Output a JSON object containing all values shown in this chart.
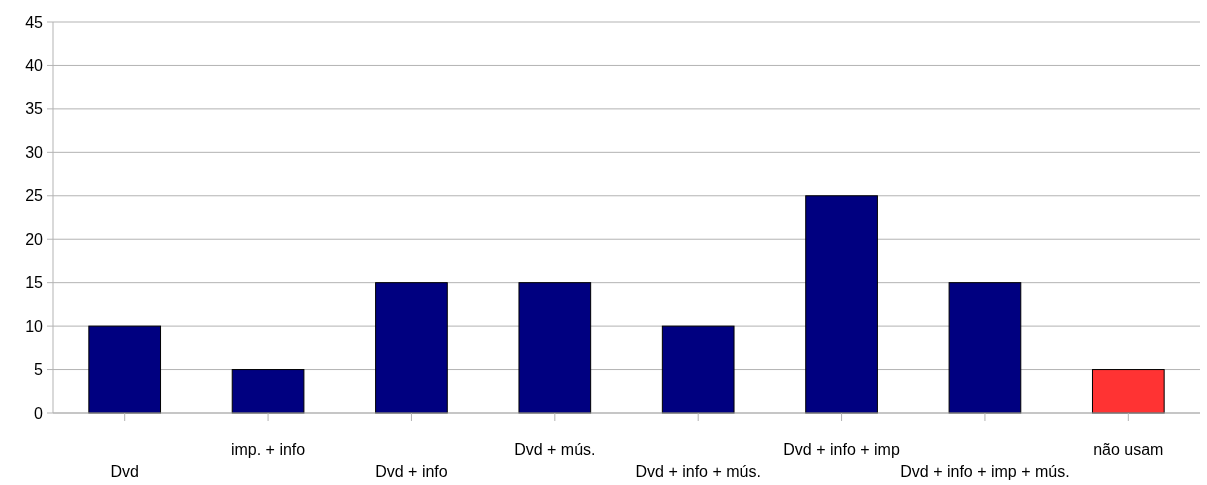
{
  "chart_data": {
    "type": "bar",
    "categories": [
      "Dvd",
      "imp. + info",
      "Dvd + info",
      "Dvd + mús.",
      "Dvd + info + mús.",
      "Dvd + info + imp",
      "Dvd + info + imp + mús.",
      "não usam"
    ],
    "values": [
      10,
      5,
      15,
      15,
      10,
      25,
      15,
      5
    ],
    "colors": [
      "#000080",
      "#000080",
      "#000080",
      "#000080",
      "#000080",
      "#000080",
      "#000080",
      "#ff3333"
    ],
    "ylim": [
      0,
      45
    ],
    "yticks": [
      0,
      5,
      10,
      15,
      20,
      25,
      30,
      35,
      40,
      45
    ],
    "grid": "y"
  }
}
